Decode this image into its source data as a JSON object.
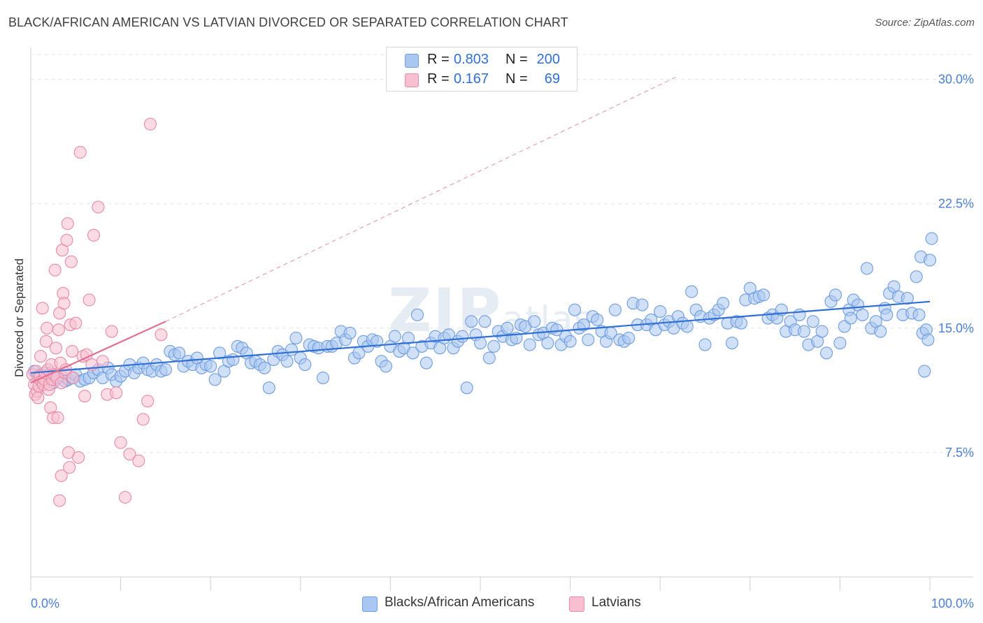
{
  "title": "BLACK/AFRICAN AMERICAN VS LATVIAN DIVORCED OR SEPARATED CORRELATION CHART",
  "source": "Source: ZipAtlas.com",
  "watermark": {
    "main": "ZIP",
    "sub": "atlas"
  },
  "legend": {
    "rows": [
      {
        "r_label": "R =",
        "r_value": "0.803",
        "n_label": "N =",
        "n_value": "200",
        "color": "#a9c7f0",
        "border": "#6f9de0"
      },
      {
        "r_label": "R =",
        "r_value": "0.167",
        "n_label": "N =",
        "n_value": "69",
        "color": "#f7bfd0",
        "border": "#e88aa8"
      }
    ]
  },
  "bottom_legend": [
    {
      "label": "Blacks/African Americans",
      "color": "#a9c7f0",
      "border": "#6f9de0"
    },
    {
      "label": "Latvians",
      "color": "#f7bfd0",
      "border": "#e88aa8"
    }
  ],
  "chart_data": {
    "type": "scatter",
    "title": "BLACK/AFRICAN AMERICAN VS LATVIAN DIVORCED OR SEPARATED CORRELATION CHART",
    "xlabel": "",
    "ylabel": "Divorced or Separated",
    "xlim": [
      0,
      100
    ],
    "ylim": [
      0,
      31.5
    ],
    "x_tick_labels": [
      "0.0%",
      "100.0%"
    ],
    "y_ticks": [
      7.5,
      15.0,
      22.5,
      30.0
    ],
    "y_tick_labels": [
      "7.5%",
      "15.0%",
      "22.5%",
      "30.0%"
    ],
    "grid": true,
    "legend_position": "top-center",
    "series": [
      {
        "name": "Blacks/African Americans",
        "color": "#6f9de0",
        "fill": "#a9c7f0",
        "trend": {
          "x": [
            0,
            100
          ],
          "y": [
            12.3,
            16.6
          ],
          "color": "#2f6fd6"
        },
        "points": [
          [
            0.4,
            12.4
          ],
          [
            0.8,
            12.0
          ],
          [
            1.1,
            12.2
          ],
          [
            1.5,
            11.9
          ],
          [
            1.8,
            12.1
          ],
          [
            2.2,
            12.3
          ],
          [
            2.5,
            11.7
          ],
          [
            3.0,
            12.0
          ],
          [
            3.4,
            12.1
          ],
          [
            3.8,
            11.8
          ],
          [
            4.2,
            11.9
          ],
          [
            4.6,
            12.0
          ],
          [
            5.0,
            12.2
          ],
          [
            5.5,
            11.8
          ],
          [
            6.0,
            11.9
          ],
          [
            6.5,
            12.0
          ],
          [
            7.0,
            12.3
          ],
          [
            7.5,
            12.5
          ],
          [
            8.0,
            12.0
          ],
          [
            8.6,
            12.6
          ],
          [
            9.0,
            12.2
          ],
          [
            9.5,
            11.8
          ],
          [
            10.0,
            12.1
          ],
          [
            10.5,
            12.4
          ],
          [
            11.0,
            12.8
          ],
          [
            11.5,
            12.3
          ],
          [
            12.0,
            12.6
          ],
          [
            12.5,
            12.9
          ],
          [
            13.0,
            12.5
          ],
          [
            13.5,
            12.4
          ],
          [
            14.0,
            12.8
          ],
          [
            14.5,
            12.4
          ],
          [
            15.0,
            12.5
          ],
          [
            15.5,
            13.6
          ],
          [
            16.0,
            13.4
          ],
          [
            16.5,
            13.5
          ],
          [
            17.0,
            12.7
          ],
          [
            17.5,
            13.0
          ],
          [
            18.0,
            12.8
          ],
          [
            18.5,
            13.2
          ],
          [
            19.0,
            12.6
          ],
          [
            19.5,
            12.8
          ],
          [
            20.0,
            12.7
          ],
          [
            20.5,
            11.9
          ],
          [
            21.0,
            13.5
          ],
          [
            21.5,
            12.4
          ],
          [
            22.0,
            13.0
          ],
          [
            22.5,
            13.1
          ],
          [
            23.0,
            13.9
          ],
          [
            23.5,
            13.8
          ],
          [
            24.0,
            13.5
          ],
          [
            24.5,
            12.9
          ],
          [
            25.0,
            13.0
          ],
          [
            25.5,
            12.8
          ],
          [
            26.0,
            12.6
          ],
          [
            26.5,
            11.4
          ],
          [
            27.0,
            13.1
          ],
          [
            27.5,
            13.6
          ],
          [
            28.0,
            13.4
          ],
          [
            28.5,
            13.0
          ],
          [
            29.0,
            13.7
          ],
          [
            29.5,
            14.4
          ],
          [
            30.0,
            13.2
          ],
          [
            30.5,
            12.8
          ],
          [
            31.0,
            14.0
          ],
          [
            31.5,
            13.9
          ],
          [
            32.0,
            13.8
          ],
          [
            32.5,
            12.0
          ],
          [
            33.0,
            13.9
          ],
          [
            33.5,
            13.9
          ],
          [
            34.0,
            14.1
          ],
          [
            34.5,
            14.8
          ],
          [
            35.0,
            14.3
          ],
          [
            35.5,
            14.7
          ],
          [
            36.0,
            13.2
          ],
          [
            36.5,
            13.5
          ],
          [
            37.0,
            14.2
          ],
          [
            37.5,
            13.9
          ],
          [
            38.0,
            14.3
          ],
          [
            38.5,
            14.2
          ],
          [
            39.0,
            13.0
          ],
          [
            39.5,
            12.7
          ],
          [
            40.0,
            13.9
          ],
          [
            40.5,
            14.5
          ],
          [
            41.0,
            13.6
          ],
          [
            41.5,
            13.8
          ],
          [
            42.0,
            14.4
          ],
          [
            42.5,
            13.5
          ],
          [
            43.0,
            15.8
          ],
          [
            43.5,
            13.9
          ],
          [
            44.0,
            12.9
          ],
          [
            44.5,
            14.1
          ],
          [
            45.0,
            14.5
          ],
          [
            45.5,
            13.8
          ],
          [
            46.0,
            14.4
          ],
          [
            46.5,
            14.6
          ],
          [
            47.0,
            13.8
          ],
          [
            47.5,
            14.2
          ],
          [
            48.0,
            14.5
          ],
          [
            48.5,
            11.4
          ],
          [
            49.0,
            15.4
          ],
          [
            49.5,
            14.6
          ],
          [
            50.0,
            14.1
          ],
          [
            50.5,
            15.4
          ],
          [
            51.0,
            13.2
          ],
          [
            51.5,
            13.9
          ],
          [
            52.0,
            14.8
          ],
          [
            52.5,
            14.5
          ],
          [
            53.0,
            15.0
          ],
          [
            53.5,
            14.3
          ],
          [
            54.0,
            14.4
          ],
          [
            54.5,
            15.2
          ],
          [
            55.0,
            15.1
          ],
          [
            55.5,
            14.0
          ],
          [
            56.0,
            15.4
          ],
          [
            56.5,
            14.6
          ],
          [
            57.0,
            14.7
          ],
          [
            57.5,
            14.1
          ],
          [
            58.0,
            15.0
          ],
          [
            58.5,
            14.9
          ],
          [
            59.0,
            14.0
          ],
          [
            59.5,
            14.5
          ],
          [
            60.0,
            14.2
          ],
          [
            60.5,
            16.1
          ],
          [
            61.0,
            15.0
          ],
          [
            61.5,
            15.2
          ],
          [
            62.0,
            14.3
          ],
          [
            62.5,
            15.7
          ],
          [
            63.0,
            15.5
          ],
          [
            63.5,
            14.8
          ],
          [
            64.0,
            14.2
          ],
          [
            64.5,
            14.7
          ],
          [
            65.0,
            16.1
          ],
          [
            65.5,
            14.3
          ],
          [
            66.0,
            14.2
          ],
          [
            66.5,
            14.4
          ],
          [
            67.0,
            16.5
          ],
          [
            67.5,
            15.2
          ],
          [
            68.0,
            16.4
          ],
          [
            68.5,
            15.2
          ],
          [
            69.0,
            15.5
          ],
          [
            69.5,
            14.9
          ],
          [
            70.0,
            16.0
          ],
          [
            70.5,
            15.2
          ],
          [
            71.0,
            15.4
          ],
          [
            71.5,
            15.0
          ],
          [
            72.0,
            15.7
          ],
          [
            72.5,
            15.3
          ],
          [
            73.0,
            15.1
          ],
          [
            73.5,
            17.2
          ],
          [
            74.0,
            16.1
          ],
          [
            74.5,
            15.7
          ],
          [
            75.0,
            14.0
          ],
          [
            75.5,
            15.6
          ],
          [
            76.0,
            15.8
          ],
          [
            76.5,
            16.1
          ],
          [
            77.0,
            16.5
          ],
          [
            77.5,
            15.3
          ],
          [
            78.0,
            14.1
          ],
          [
            78.5,
            15.4
          ],
          [
            79.0,
            15.3
          ],
          [
            79.5,
            16.7
          ],
          [
            80.0,
            17.4
          ],
          [
            80.5,
            16.8
          ],
          [
            81.0,
            16.9
          ],
          [
            81.5,
            17.0
          ],
          [
            82.0,
            15.6
          ],
          [
            82.5,
            15.8
          ],
          [
            83.0,
            15.6
          ],
          [
            83.5,
            16.1
          ],
          [
            84.0,
            14.8
          ],
          [
            84.5,
            15.4
          ],
          [
            85.0,
            14.9
          ],
          [
            85.5,
            15.8
          ],
          [
            86.0,
            14.8
          ],
          [
            86.5,
            14.0
          ],
          [
            87.0,
            15.4
          ],
          [
            87.5,
            14.2
          ],
          [
            88.0,
            14.8
          ],
          [
            88.5,
            13.5
          ],
          [
            89.0,
            16.6
          ],
          [
            89.5,
            17.0
          ],
          [
            90.0,
            14.1
          ],
          [
            90.5,
            15.1
          ],
          [
            91.0,
            16.1
          ],
          [
            91.5,
            16.7
          ],
          [
            92.0,
            16.4
          ],
          [
            92.5,
            15.8
          ],
          [
            93.0,
            18.6
          ],
          [
            93.5,
            15.0
          ],
          [
            94.0,
            15.4
          ],
          [
            94.5,
            14.8
          ],
          [
            95.0,
            16.2
          ],
          [
            95.5,
            17.1
          ],
          [
            96.0,
            17.5
          ],
          [
            96.5,
            16.9
          ],
          [
            97.0,
            15.8
          ],
          [
            97.5,
            16.8
          ],
          [
            98.0,
            15.9
          ],
          [
            98.5,
            18.1
          ],
          [
            98.8,
            15.8
          ],
          [
            99.0,
            19.3
          ],
          [
            99.2,
            14.7
          ],
          [
            99.4,
            12.4
          ],
          [
            99.6,
            14.9
          ],
          [
            99.8,
            14.3
          ],
          [
            100.0,
            19.1
          ],
          [
            100.2,
            20.4
          ],
          [
            95.2,
            15.8
          ],
          [
            91.2,
            15.6
          ]
        ]
      },
      {
        "name": "Latvians",
        "color": "#e88aa8",
        "fill": "#f7bfd0",
        "trend": {
          "x": [
            0,
            15
          ],
          "y": [
            11.7,
            15.4
          ],
          "color": "#e0708f"
        },
        "trend_extended": {
          "x": [
            15,
            72
          ],
          "y": [
            15.4,
            30.2
          ],
          "color": "#e88aa8",
          "dashed": true
        },
        "points": [
          [
            0.2,
            12.2
          ],
          [
            0.4,
            11.6
          ],
          [
            0.5,
            11.0
          ],
          [
            0.6,
            12.4
          ],
          [
            0.7,
            11.2
          ],
          [
            0.8,
            10.8
          ],
          [
            0.9,
            11.5
          ],
          [
            1.0,
            12.1
          ],
          [
            1.1,
            13.3
          ],
          [
            1.2,
            11.8
          ],
          [
            1.3,
            16.2
          ],
          [
            1.4,
            11.6
          ],
          [
            1.5,
            11.9
          ],
          [
            1.6,
            12.3
          ],
          [
            1.7,
            14.2
          ],
          [
            1.8,
            15.0
          ],
          [
            1.9,
            12.5
          ],
          [
            2.0,
            11.3
          ],
          [
            2.1,
            11.6
          ],
          [
            2.2,
            10.2
          ],
          [
            2.3,
            12.8
          ],
          [
            2.4,
            11.9
          ],
          [
            2.5,
            9.6
          ],
          [
            2.6,
            12.2
          ],
          [
            2.7,
            18.5
          ],
          [
            2.8,
            13.8
          ],
          [
            2.9,
            12.0
          ],
          [
            3.0,
            9.6
          ],
          [
            3.1,
            14.9
          ],
          [
            3.2,
            15.9
          ],
          [
            3.3,
            12.9
          ],
          [
            3.4,
            11.7
          ],
          [
            3.5,
            19.7
          ],
          [
            3.6,
            17.1
          ],
          [
            3.7,
            16.5
          ],
          [
            3.8,
            12.3
          ],
          [
            3.9,
            12.5
          ],
          [
            4.0,
            20.3
          ],
          [
            4.1,
            21.3
          ],
          [
            4.2,
            7.5
          ],
          [
            4.3,
            6.6
          ],
          [
            4.4,
            15.2
          ],
          [
            4.5,
            19.0
          ],
          [
            4.6,
            13.6
          ],
          [
            4.7,
            12.0
          ],
          [
            5.0,
            15.3
          ],
          [
            5.3,
            7.2
          ],
          [
            5.5,
            25.6
          ],
          [
            5.8,
            13.3
          ],
          [
            6.0,
            10.9
          ],
          [
            6.2,
            13.4
          ],
          [
            6.5,
            16.7
          ],
          [
            6.8,
            12.8
          ],
          [
            7.0,
            20.6
          ],
          [
            7.5,
            22.3
          ],
          [
            8.0,
            13.0
          ],
          [
            8.5,
            11.0
          ],
          [
            9.0,
            14.8
          ],
          [
            9.5,
            11.1
          ],
          [
            10.0,
            8.1
          ],
          [
            10.5,
            4.8
          ],
          [
            11.0,
            7.4
          ],
          [
            12.0,
            7.0
          ],
          [
            12.5,
            9.5
          ],
          [
            13.0,
            10.6
          ],
          [
            13.3,
            27.3
          ],
          [
            14.5,
            14.6
          ],
          [
            3.2,
            4.6
          ],
          [
            3.4,
            6.1
          ]
        ]
      }
    ]
  }
}
